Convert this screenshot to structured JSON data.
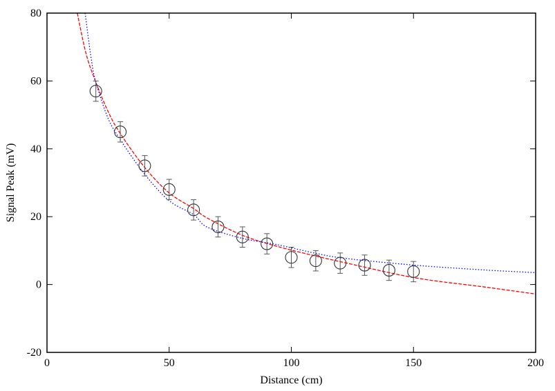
{
  "chart_data": {
    "type": "scatter",
    "title": "",
    "xlabel": "Distance (cm)",
    "ylabel": "Signal Peak (mV)",
    "xlim": [
      0,
      200
    ],
    "ylim": [
      -20,
      80
    ],
    "xticks": [
      0,
      50,
      100,
      150,
      200
    ],
    "yticks": [
      -20,
      0,
      20,
      40,
      60,
      80
    ],
    "grid": false,
    "legend": "none",
    "points": {
      "x": [
        20,
        30,
        40,
        50,
        60,
        70,
        80,
        90,
        100,
        110,
        120,
        130,
        140,
        150
      ],
      "y": [
        57,
        45,
        35,
        28,
        22,
        17,
        14,
        12,
        8,
        7,
        6.3,
        5.7,
        4.2,
        3.8
      ],
      "yerr": [
        3,
        3,
        3,
        3,
        3,
        3,
        3,
        3,
        3,
        3,
        3,
        3,
        3,
        3
      ],
      "color": "#555555"
    },
    "curves": [
      {
        "style": "dashed",
        "color": "#ff0000",
        "x": [
          12.4,
          16,
          20,
          25,
          30,
          40,
          50,
          60,
          65.6,
          80,
          93.9,
          110,
          122.2,
          150.5,
          178.8,
          200
        ],
        "y": [
          80,
          68,
          59.6,
          51,
          44.5,
          34.5,
          27,
          22.4,
          19.6,
          14.5,
          11.3,
          8.4,
          6.4,
          2.0,
          -0.7,
          -2.8
        ]
      },
      {
        "style": "dotted",
        "color": "#0000ff",
        "x": [
          15.6,
          18,
          20,
          25,
          30,
          40,
          50,
          60,
          65.6,
          80,
          93.9,
          110,
          122.2,
          150.5,
          178.8,
          200
        ],
        "y": [
          80,
          67,
          59.6,
          49,
          42.7,
          32.5,
          24.7,
          20.6,
          16.9,
          13.6,
          11.8,
          9.2,
          7.7,
          5.7,
          4.3,
          3.5
        ]
      }
    ]
  }
}
